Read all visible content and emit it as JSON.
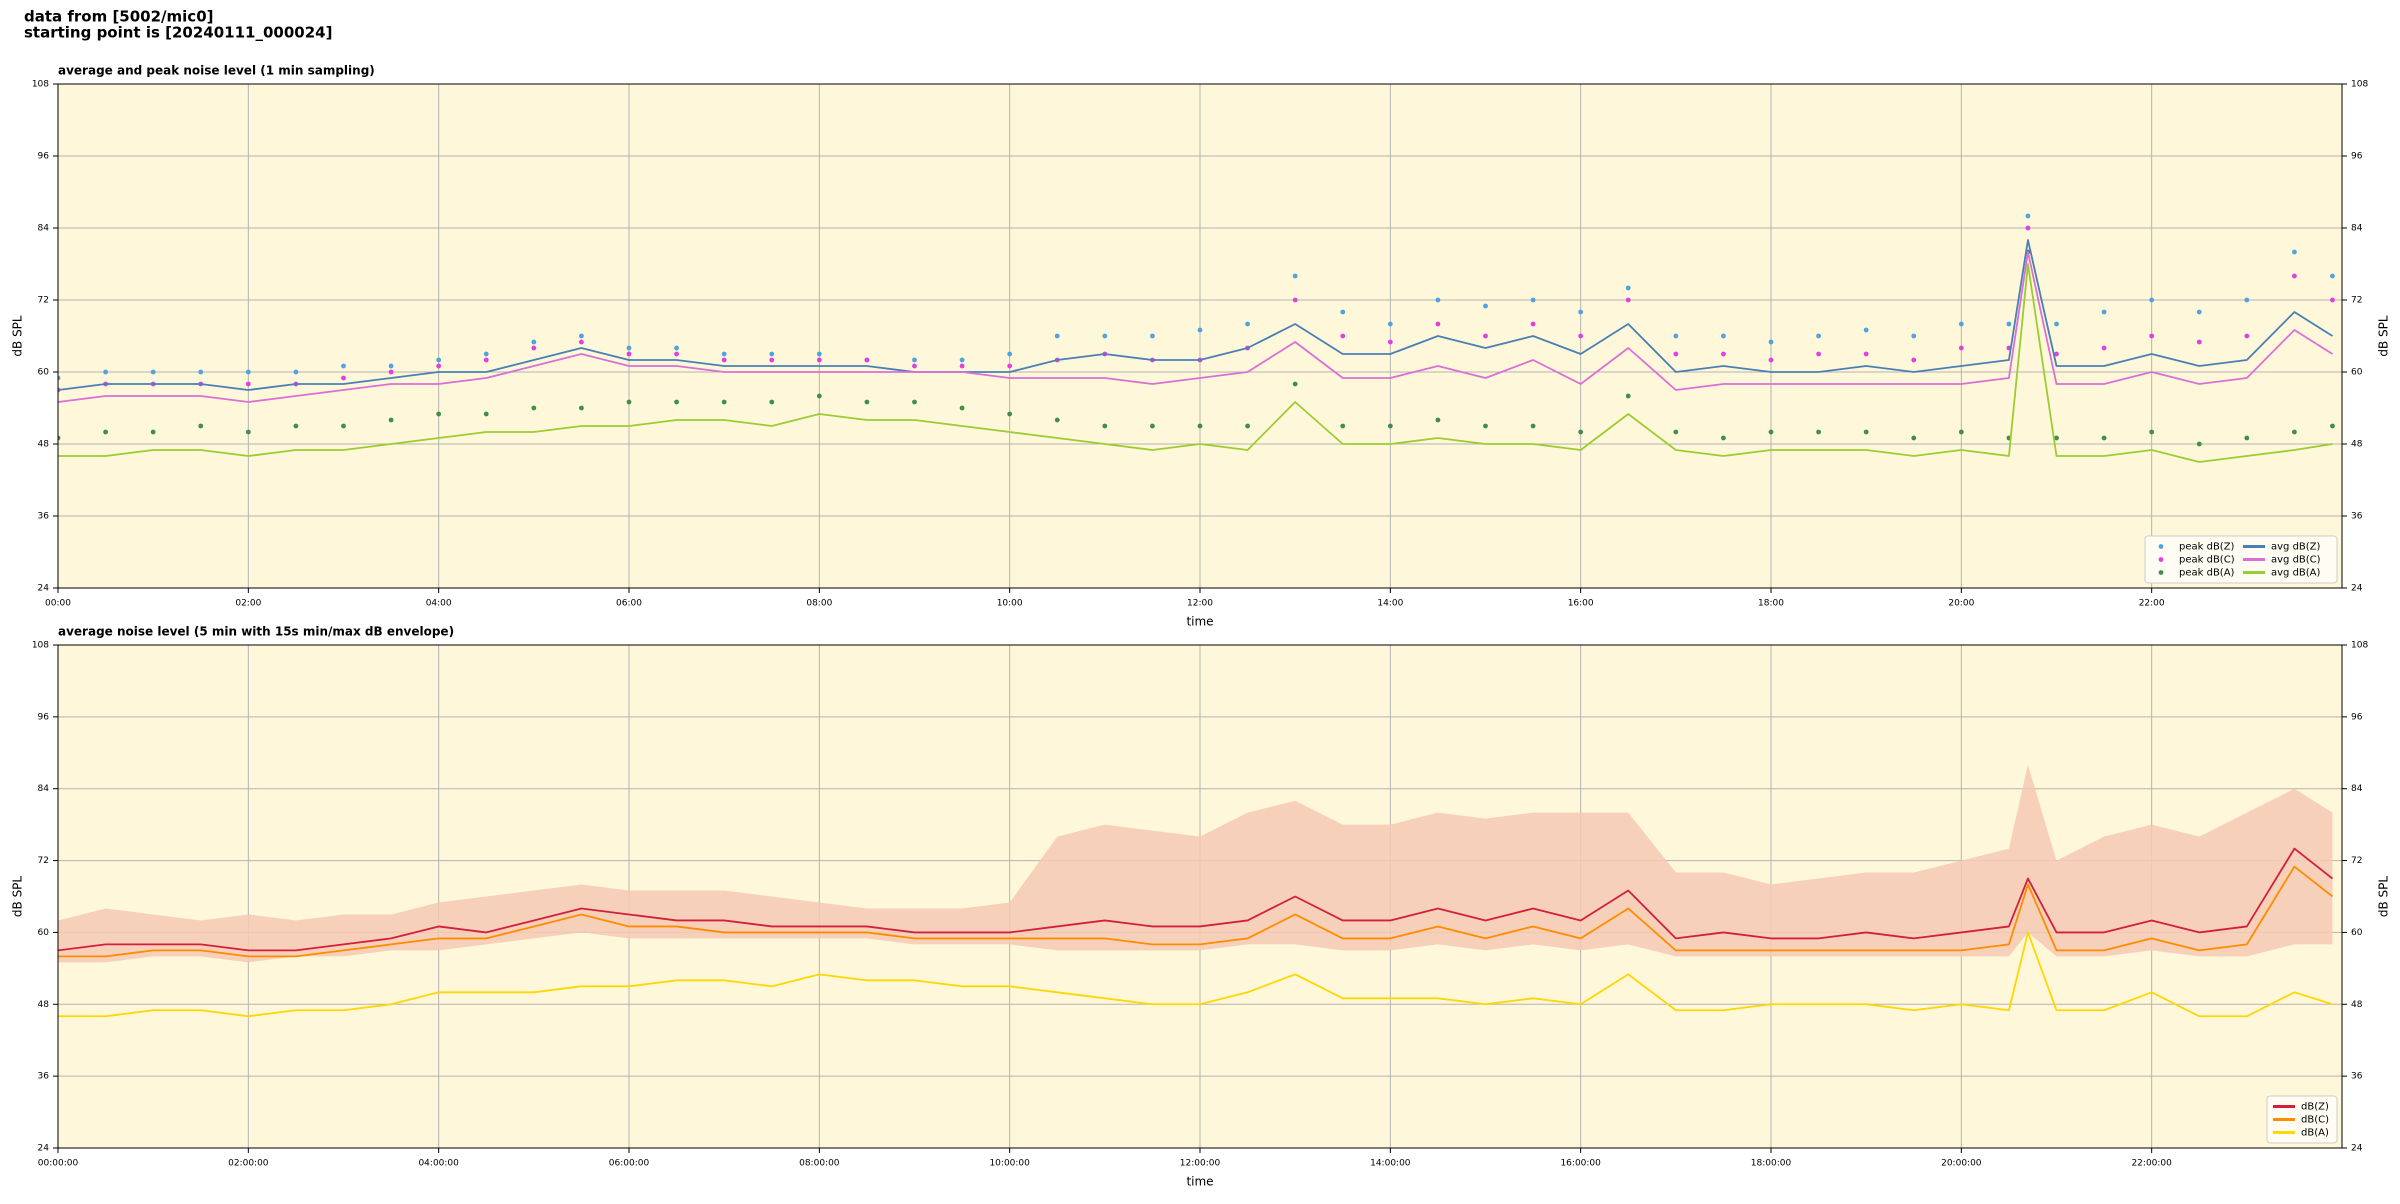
{
  "header": {
    "lines": [
      "data from [5002/mic0]",
      "starting point is [20240111_000024]"
    ]
  },
  "chart_data": [
    {
      "type": "line",
      "title": "average and peak noise level (1 min sampling)",
      "xlabel": "time",
      "ylabel": "dB SPL",
      "xlim": [
        0,
        24
      ],
      "ylim": [
        24,
        108
      ],
      "xticks": [
        {
          "value": 0,
          "label": "00:00"
        },
        {
          "value": 2,
          "label": "02:00"
        },
        {
          "value": 4,
          "label": "04:00"
        },
        {
          "value": 6,
          "label": "06:00"
        },
        {
          "value": 8,
          "label": "08:00"
        },
        {
          "value": 10,
          "label": "10:00"
        },
        {
          "value": 12,
          "label": "12:00"
        },
        {
          "value": 14,
          "label": "14:00"
        },
        {
          "value": 16,
          "label": "16:00"
        },
        {
          "value": 18,
          "label": "18:00"
        },
        {
          "value": 20,
          "label": "20:00"
        },
        {
          "value": 22,
          "label": "22:00"
        }
      ],
      "yticks": [
        24,
        36,
        48,
        60,
        72,
        84,
        96,
        108
      ],
      "grid": true,
      "legend": "lower right",
      "background": "#fff7d9",
      "x": [
        0,
        0.5,
        1,
        1.5,
        2,
        2.5,
        3,
        3.5,
        4,
        4.5,
        5,
        5.5,
        6,
        6.5,
        7,
        7.5,
        8,
        8.5,
        9,
        9.5,
        10,
        10.5,
        11,
        11.5,
        12,
        12.5,
        13,
        13.5,
        14,
        14.5,
        15,
        15.5,
        16,
        16.5,
        17,
        17.5,
        18,
        18.5,
        19,
        19.5,
        20,
        20.5,
        20.7,
        21,
        21.5,
        22,
        22.5,
        23,
        23.5,
        23.9
      ],
      "series": [
        {
          "name": "peak dB(Z)",
          "style": "dots",
          "color": "#4fa3e0",
          "values": [
            59,
            60,
            60,
            60,
            60,
            60,
            61,
            61,
            62,
            63,
            65,
            66,
            64,
            64,
            63,
            63,
            63,
            62,
            62,
            62,
            63,
            66,
            66,
            66,
            67,
            68,
            76,
            70,
            68,
            72,
            71,
            72,
            70,
            74,
            66,
            66,
            65,
            66,
            67,
            66,
            68,
            68,
            86,
            68,
            70,
            72,
            70,
            72,
            80,
            76
          ]
        },
        {
          "name": "peak dB(C)",
          "style": "dots",
          "color": "#e040e0",
          "values": [
            57,
            58,
            58,
            58,
            58,
            58,
            59,
            60,
            61,
            62,
            64,
            65,
            63,
            63,
            62,
            62,
            62,
            62,
            61,
            61,
            61,
            62,
            63,
            62,
            62,
            64,
            72,
            66,
            65,
            68,
            66,
            68,
            66,
            72,
            63,
            63,
            62,
            63,
            63,
            62,
            64,
            64,
            84,
            63,
            64,
            66,
            65,
            66,
            76,
            72
          ]
        },
        {
          "name": "peak dB(A)",
          "style": "dots",
          "color": "#3f8f4a",
          "values": [
            49,
            50,
            50,
            51,
            50,
            51,
            51,
            52,
            53,
            53,
            54,
            54,
            55,
            55,
            55,
            55,
            56,
            55,
            55,
            54,
            53,
            52,
            51,
            51,
            51,
            51,
            58,
            51,
            51,
            52,
            51,
            51,
            50,
            56,
            50,
            49,
            50,
            50,
            50,
            49,
            50,
            49,
            80,
            49,
            49,
            50,
            48,
            49,
            50,
            51
          ]
        },
        {
          "name": "avg dB(Z)",
          "style": "line",
          "color": "#4a7fb5",
          "values": [
            57,
            58,
            58,
            58,
            57,
            58,
            58,
            59,
            60,
            60,
            62,
            64,
            62,
            62,
            61,
            61,
            61,
            61,
            60,
            60,
            60,
            62,
            63,
            62,
            62,
            64,
            68,
            63,
            63,
            66,
            64,
            66,
            63,
            68,
            60,
            61,
            60,
            60,
            61,
            60,
            61,
            62,
            82,
            61,
            61,
            63,
            61,
            62,
            70,
            66
          ]
        },
        {
          "name": "avg dB(C)",
          "style": "line",
          "color": "#da70d6",
          "values": [
            55,
            56,
            56,
            56,
            55,
            56,
            57,
            58,
            58,
            59,
            61,
            63,
            61,
            61,
            60,
            60,
            60,
            60,
            60,
            60,
            59,
            59,
            59,
            58,
            59,
            60,
            65,
            59,
            59,
            61,
            59,
            62,
            58,
            64,
            57,
            58,
            58,
            58,
            58,
            58,
            58,
            59,
            80,
            58,
            58,
            60,
            58,
            59,
            67,
            63
          ]
        },
        {
          "name": "avg dB(A)",
          "style": "line",
          "color": "#9acd32",
          "values": [
            46,
            46,
            47,
            47,
            46,
            47,
            47,
            48,
            49,
            50,
            50,
            51,
            51,
            52,
            52,
            51,
            53,
            52,
            52,
            51,
            50,
            49,
            48,
            47,
            48,
            47,
            55,
            48,
            48,
            49,
            48,
            48,
            47,
            53,
            47,
            46,
            47,
            47,
            47,
            46,
            47,
            46,
            78,
            46,
            46,
            47,
            45,
            46,
            47,
            48
          ]
        }
      ]
    },
    {
      "type": "line",
      "title": "average noise level (5 min with 15s min/max dB envelope)",
      "xlabel": "time",
      "ylabel": "dB SPL",
      "xlim": [
        0,
        24
      ],
      "ylim": [
        24,
        108
      ],
      "xticks": [
        {
          "value": 0,
          "label": "00:00:00"
        },
        {
          "value": 2,
          "label": "02:00:00"
        },
        {
          "value": 4,
          "label": "04:00:00"
        },
        {
          "value": 6,
          "label": "06:00:00"
        },
        {
          "value": 8,
          "label": "08:00:00"
        },
        {
          "value": 10,
          "label": "10:00:00"
        },
        {
          "value": 12,
          "label": "12:00:00"
        },
        {
          "value": 14,
          "label": "14:00:00"
        },
        {
          "value": 16,
          "label": "16:00:00"
        },
        {
          "value": 18,
          "label": "18:00:00"
        },
        {
          "value": 20,
          "label": "20:00:00"
        },
        {
          "value": 22,
          "label": "22:00:00"
        }
      ],
      "yticks": [
        24,
        36,
        48,
        60,
        72,
        84,
        96,
        108
      ],
      "grid": true,
      "legend": "lower right",
      "background": "#fff7d9",
      "x": [
        0,
        0.5,
        1,
        1.5,
        2,
        2.5,
        3,
        3.5,
        4,
        4.5,
        5,
        5.5,
        6,
        6.5,
        7,
        7.5,
        8,
        8.5,
        9,
        9.5,
        10,
        10.5,
        11,
        11.5,
        12,
        12.5,
        13,
        13.5,
        14,
        14.5,
        15,
        15.5,
        16,
        16.5,
        17,
        17.5,
        18,
        18.5,
        19,
        19.5,
        20,
        20.5,
        20.7,
        21,
        21.5,
        22,
        22.5,
        23,
        23.5,
        23.9
      ],
      "envelope": {
        "color": "#f6c9b4",
        "upper": [
          62,
          64,
          63,
          62,
          63,
          62,
          63,
          63,
          65,
          66,
          67,
          68,
          67,
          67,
          67,
          66,
          65,
          64,
          64,
          64,
          65,
          76,
          78,
          77,
          76,
          80,
          82,
          78,
          78,
          80,
          79,
          80,
          80,
          80,
          70,
          70,
          68,
          69,
          70,
          70,
          72,
          74,
          88,
          72,
          76,
          78,
          76,
          80,
          84,
          80
        ],
        "lower": [
          55,
          55,
          56,
          56,
          55,
          56,
          56,
          57,
          57,
          58,
          59,
          60,
          59,
          59,
          59,
          59,
          59,
          59,
          58,
          58,
          58,
          57,
          57,
          57,
          57,
          58,
          58,
          57,
          57,
          58,
          57,
          58,
          57,
          58,
          56,
          56,
          56,
          56,
          56,
          56,
          56,
          56,
          60,
          56,
          56,
          57,
          56,
          56,
          58,
          58
        ]
      },
      "series": [
        {
          "name": "dB(Z)",
          "style": "line",
          "color": "#d21f3c",
          "values": [
            57,
            58,
            58,
            58,
            57,
            57,
            58,
            59,
            61,
            60,
            62,
            64,
            63,
            62,
            62,
            61,
            61,
            61,
            60,
            60,
            60,
            61,
            62,
            61,
            61,
            62,
            66,
            62,
            62,
            64,
            62,
            64,
            62,
            67,
            59,
            60,
            59,
            59,
            60,
            59,
            60,
            61,
            69,
            60,
            60,
            62,
            60,
            61,
            74,
            69
          ]
        },
        {
          "name": "dB(C)",
          "style": "line",
          "color": "#ff8c00",
          "values": [
            56,
            56,
            57,
            57,
            56,
            56,
            57,
            58,
            59,
            59,
            61,
            63,
            61,
            61,
            60,
            60,
            60,
            60,
            59,
            59,
            59,
            59,
            59,
            58,
            58,
            59,
            63,
            59,
            59,
            61,
            59,
            61,
            59,
            64,
            57,
            57,
            57,
            57,
            57,
            57,
            57,
            58,
            68,
            57,
            57,
            59,
            57,
            58,
            71,
            66
          ]
        },
        {
          "name": "dB(A)",
          "style": "line",
          "color": "#ffd700",
          "values": [
            46,
            46,
            47,
            47,
            46,
            47,
            47,
            48,
            50,
            50,
            50,
            51,
            51,
            52,
            52,
            51,
            53,
            52,
            52,
            51,
            51,
            50,
            49,
            48,
            48,
            50,
            53,
            49,
            49,
            49,
            48,
            49,
            48,
            53,
            47,
            47,
            48,
            48,
            48,
            47,
            48,
            47,
            60,
            47,
            47,
            50,
            46,
            46,
            50,
            48
          ]
        }
      ]
    }
  ]
}
